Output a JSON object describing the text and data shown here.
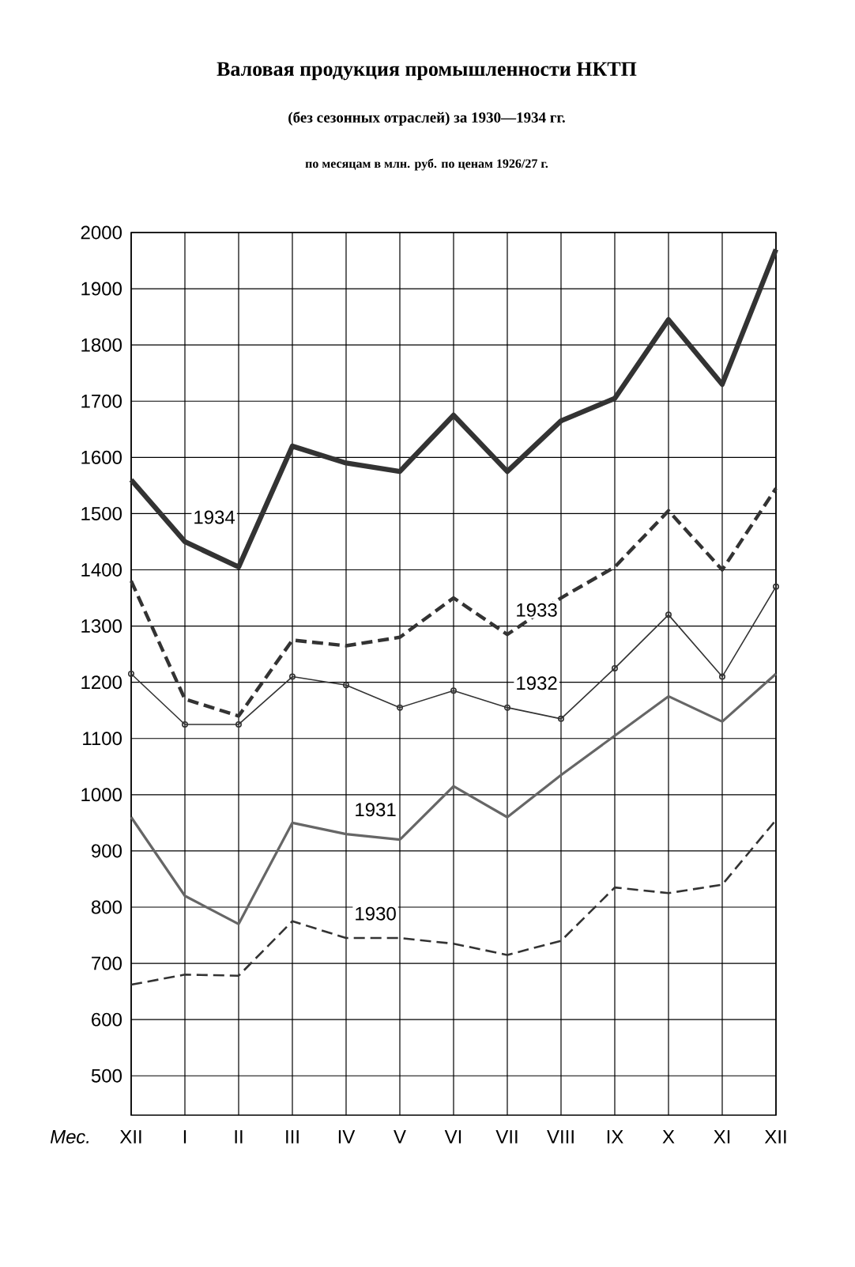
{
  "chart_data": {
    "type": "line",
    "title": "Валовая продукция промышленности НКТП",
    "subtitle": "(без сезонных отраслей) за 1930—1934 гг.",
    "annotations": [
      "по месяцам в млн. руб. по ценам 1926/27 г."
    ],
    "xlabel": "Мес.",
    "categories": [
      "XII",
      "I",
      "II",
      "III",
      "IV",
      "V",
      "VI",
      "VII",
      "VIII",
      "IX",
      "X",
      "XI",
      "XII"
    ],
    "series": [
      {
        "name": "1934",
        "color": "#333333",
        "line_style": "solid",
        "marker": "none",
        "values": [
          1560,
          1450,
          1405,
          1620,
          1590,
          1575,
          1675,
          1575,
          1665,
          1705,
          1845,
          1730,
          1970
        ]
      },
      {
        "name": "1933",
        "color": "#333333",
        "line_style": "dashed",
        "marker": "none",
        "values": [
          1380,
          1170,
          1140,
          1275,
          1265,
          1280,
          1350,
          1285,
          1350,
          1405,
          1505,
          1400,
          1545
        ]
      },
      {
        "name": "1932",
        "color": "#333333",
        "line_style": "solid",
        "marker": "circle",
        "values": [
          1215,
          1125,
          1125,
          1210,
          1195,
          1155,
          1185,
          1155,
          1135,
          1225,
          1320,
          1210,
          1370
        ]
      },
      {
        "name": "1931",
        "color": "#666666",
        "line_style": "solid",
        "marker": "none",
        "values": [
          960,
          820,
          770,
          950,
          930,
          920,
          1015,
          960,
          1035,
          1105,
          1175,
          1130,
          1215
        ]
      },
      {
        "name": "1930",
        "color": "#333333",
        "line_style": "dashed",
        "marker": "none",
        "values": [
          662,
          680,
          678,
          775,
          745,
          745,
          735,
          715,
          740,
          835,
          825,
          840,
          955
        ]
      }
    ],
    "ylim": [
      430,
      2000
    ],
    "yticks": [
      500,
      600,
      700,
      800,
      900,
      1000,
      1100,
      1200,
      1300,
      1400,
      1500,
      1600,
      1700,
      1800,
      1900,
      2000
    ],
    "grid": true
  }
}
